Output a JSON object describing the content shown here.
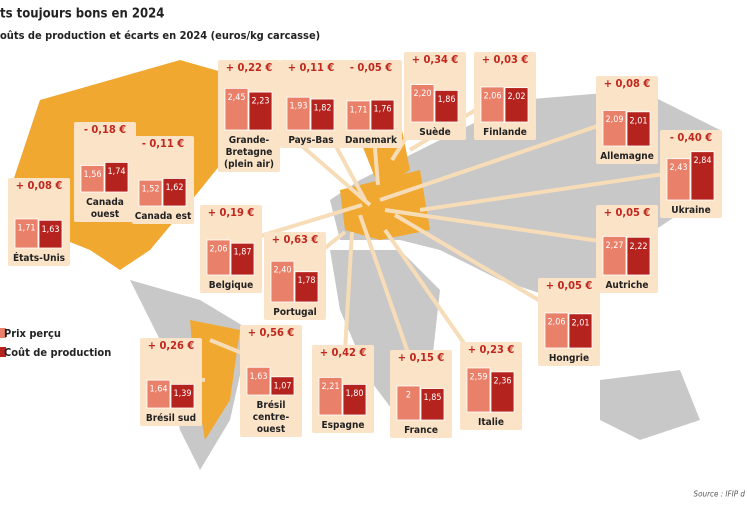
{
  "header": {
    "title": "ts toujours bons en 2024",
    "subtitle": "oûts de production et écarts en 2024 (euros/kg carcasse)"
  },
  "legend": {
    "price": "Prix perçu",
    "cost": "Coût de production"
  },
  "source": "Source : IFIP d",
  "countries": [
    {
      "name": [
        "Grande-",
        "Bretagne",
        "(plein air)"
      ],
      "delta": "+ 0,22 €",
      "price": {
        "value": 2.45,
        "label": "2,45"
      },
      "cost": {
        "value": 2.23,
        "label": "2,23"
      }
    },
    {
      "name": [
        "Pays-Bas"
      ],
      "delta": "+ 0,11 €",
      "price": {
        "value": 1.93,
        "label": "1,93"
      },
      "cost": {
        "value": 1.82,
        "label": "1,82"
      }
    },
    {
      "name": [
        "Danemark"
      ],
      "delta": "- 0,05 €",
      "price": {
        "value": 1.71,
        "label": "1,71"
      },
      "cost": {
        "value": 1.76,
        "label": "1,76"
      }
    },
    {
      "name": [
        "Suède"
      ],
      "delta": "+ 0,34 €",
      "price": {
        "value": 2.2,
        "label": "2,20"
      },
      "cost": {
        "value": 1.86,
        "label": "1,86"
      }
    },
    {
      "name": [
        "Finlande"
      ],
      "delta": "+ 0,03 €",
      "price": {
        "value": 2.06,
        "label": "2,06"
      },
      "cost": {
        "value": 2.02,
        "label": "2,02"
      }
    },
    {
      "name": [
        "Allemagne"
      ],
      "delta": "+ 0,08 €",
      "price": {
        "value": 2.09,
        "label": "2,09"
      },
      "cost": {
        "value": 2.01,
        "label": "2,01"
      }
    },
    {
      "name": [
        "Ukraine"
      ],
      "delta": "- 0,40 €",
      "price": {
        "value": 2.43,
        "label": "2,43"
      },
      "cost": {
        "value": 2.84,
        "label": "2,84"
      }
    },
    {
      "name": [
        "Autriche"
      ],
      "delta": "+ 0,05 €",
      "price": {
        "value": 2.27,
        "label": "2,27"
      },
      "cost": {
        "value": 2.22,
        "label": "2,22"
      }
    },
    {
      "name": [
        "Hongrie"
      ],
      "delta": "+ 0,05 €",
      "price": {
        "value": 2.06,
        "label": "2,06"
      },
      "cost": {
        "value": 2.01,
        "label": "2,01"
      }
    },
    {
      "name": [
        "Italie"
      ],
      "delta": "+ 0,23 €",
      "price": {
        "value": 2.59,
        "label": "2,59"
      },
      "cost": {
        "value": 2.36,
        "label": "2,36"
      }
    },
    {
      "name": [
        "France"
      ],
      "delta": "+ 0,15 €",
      "price": {
        "value": 2,
        "label": "2"
      },
      "cost": {
        "value": 1.85,
        "label": "1,85"
      }
    },
    {
      "name": [
        "Espagne"
      ],
      "delta": "+ 0,42 €",
      "price": {
        "value": 2.21,
        "label": "2,21"
      },
      "cost": {
        "value": 1.8,
        "label": "1,80"
      }
    },
    {
      "name": [
        "Brésil",
        "centre-",
        "ouest"
      ],
      "delta": "+ 0,56 €",
      "price": {
        "value": 1.63,
        "label": "1,63"
      },
      "cost": {
        "value": 1.07,
        "label": "1,07"
      }
    },
    {
      "name": [
        "Brésil sud"
      ],
      "delta": "+ 0,26 €",
      "price": {
        "value": 1.64,
        "label": "1,64"
      },
      "cost": {
        "value": 1.39,
        "label": "1,39"
      }
    },
    {
      "name": [
        "Portugal"
      ],
      "delta": "+ 0,63 €",
      "price": {
        "value": 2.4,
        "label": "2,40"
      },
      "cost": {
        "value": 1.78,
        "label": "1,78"
      }
    },
    {
      "name": [
        "Belgique"
      ],
      "delta": "+ 0,19 €",
      "price": {
        "value": 2.06,
        "label": "2,06"
      },
      "cost": {
        "value": 1.87,
        "label": "1,87"
      }
    },
    {
      "name": [
        "États-Unis"
      ],
      "delta": "+ 0,08 €",
      "price": {
        "value": 1.71,
        "label": "1,71"
      },
      "cost": {
        "value": 1.63,
        "label": "1,63"
      }
    },
    {
      "name": [
        "Canada",
        "ouest"
      ],
      "delta": "- 0,18 €",
      "price": {
        "value": 1.56,
        "label": "1,56"
      },
      "cost": {
        "value": 1.74,
        "label": "1,74"
      }
    },
    {
      "name": [
        "Canada est"
      ],
      "delta": "- 0,11 €",
      "price": {
        "value": 1.52,
        "label": "1,52"
      },
      "cost": {
        "value": 1.62,
        "label": "1,62"
      }
    }
  ]
}
